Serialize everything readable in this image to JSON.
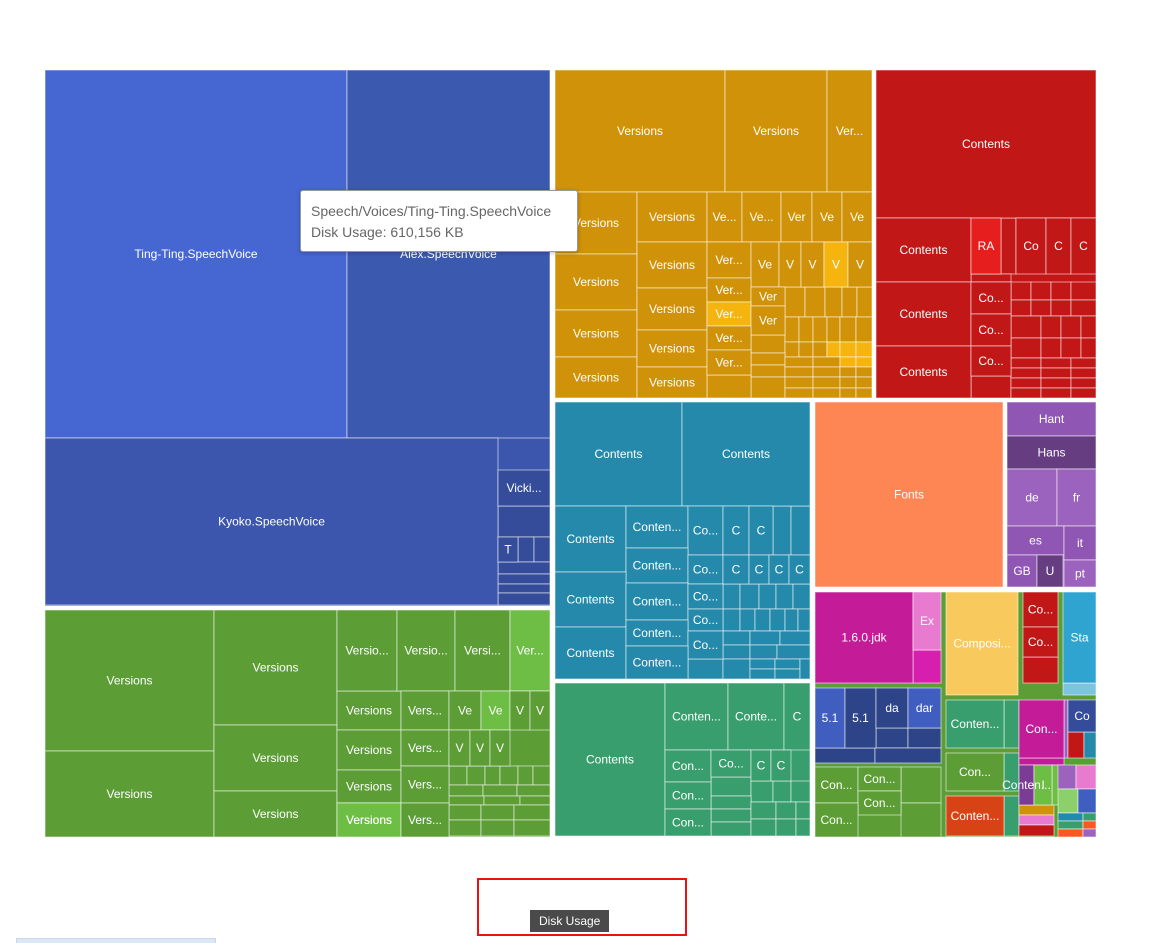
{
  "chart_data": {
    "type": "treemap",
    "series_name": "Disk Usage",
    "nodes": [
      {
        "name": "Ting-Ting.SpeechVoice",
        "label": "Ting-Ting.SpeechVoice",
        "color": "#4667d1"
      },
      {
        "name": "Alex.SpeechVoice",
        "label": "Alex.SpeechVoice",
        "color": "#3c59b0"
      },
      {
        "name": "Kyoko.SpeechVoice",
        "label": "Kyoko.SpeechVoice",
        "color": "#3c55ad"
      },
      {
        "name": "Vicki.SpeechVoice",
        "label": "Vicki...",
        "color": "#344c9a"
      },
      {
        "name": "T",
        "label": "T",
        "color": "#344c9a"
      },
      {
        "name": "Versions",
        "label": "Versions",
        "color": "#5c9e35"
      },
      {
        "name": "Versions",
        "label": "Versions",
        "color": "#5c9e35"
      },
      {
        "name": "Versions",
        "label": "Versions",
        "color": "#5c9e35"
      },
      {
        "name": "Versions",
        "label": "Versions",
        "color": "#5c9e35"
      },
      {
        "name": "Versions",
        "label": "Versions",
        "color": "#5c9e35"
      },
      {
        "name": "Versions",
        "label": "Versions",
        "color": "#5c9e35"
      },
      {
        "name": "Versio...",
        "label": "Versio...",
        "color": "#5c9e35"
      },
      {
        "name": "Versio...",
        "label": "Versio...",
        "color": "#5c9e35"
      },
      {
        "name": "Versi...",
        "label": "Versi...",
        "color": "#5c9e35"
      },
      {
        "name": "Ver...",
        "label": "Ver...",
        "color": "#6ebd44"
      },
      {
        "name": "Versions",
        "label": "Versions",
        "color": "#5c9e35"
      },
      {
        "name": "Vers...",
        "label": "Vers...",
        "color": "#5c9e35"
      },
      {
        "name": "Ve",
        "label": "Ve",
        "color": "#5c9e35"
      },
      {
        "name": "Ve",
        "label": "Ve",
        "color": "#6ebd44"
      },
      {
        "name": "V",
        "label": "V",
        "color": "#5c9e35"
      },
      {
        "name": "V",
        "label": "V",
        "color": "#5c9e35"
      },
      {
        "name": "Versions",
        "label": "Versions",
        "color": "#5c9e35"
      },
      {
        "name": "Vers...",
        "label": "Vers...",
        "color": "#5c9e35"
      },
      {
        "name": "V",
        "label": "V",
        "color": "#5c9e35"
      },
      {
        "name": "V",
        "label": "V",
        "color": "#5c9e35"
      },
      {
        "name": "V",
        "label": "V",
        "color": "#5c9e35"
      },
      {
        "name": "Versions",
        "label": "Versions",
        "color": "#5c9e35"
      },
      {
        "name": "Vers...",
        "label": "Vers...",
        "color": "#5c9e35"
      },
      {
        "name": "Versions",
        "label": "Versions",
        "color": "#6ebd44"
      },
      {
        "name": "Vers...",
        "label": "Vers...",
        "color": "#5c9e35"
      },
      {
        "name": "Versions",
        "label": "Versions",
        "color": "#d09208"
      },
      {
        "name": "Versions",
        "label": "Versions",
        "color": "#d09208"
      },
      {
        "name": "Ver...",
        "label": "Ver...",
        "color": "#d09208"
      },
      {
        "name": "Versions",
        "label": "Versions",
        "color": "#d09208"
      },
      {
        "name": "Versions",
        "label": "Versions",
        "color": "#d09208"
      },
      {
        "name": "Versions",
        "label": "Versions",
        "color": "#d09208"
      },
      {
        "name": "Versions",
        "label": "Versions",
        "color": "#d09208"
      },
      {
        "name": "Versions",
        "label": "Versions",
        "color": "#d09208"
      },
      {
        "name": "Versions",
        "label": "Versions",
        "color": "#d09208"
      },
      {
        "name": "Versions",
        "label": "Versions",
        "color": "#d09208"
      },
      {
        "name": "Versions",
        "label": "Versions",
        "color": "#d09208"
      },
      {
        "name": "Versions",
        "label": "Versions",
        "color": "#d09208"
      },
      {
        "name": "Ve...",
        "label": "Ve...",
        "color": "#d09208"
      },
      {
        "name": "Ve...",
        "label": "Ve...",
        "color": "#d09208"
      },
      {
        "name": "Ver",
        "label": "Ver",
        "color": "#d09208"
      },
      {
        "name": "Ve",
        "label": "Ve",
        "color": "#d09208"
      },
      {
        "name": "Ve",
        "label": "Ve",
        "color": "#d09208"
      },
      {
        "name": "Ver...",
        "label": "Ver...",
        "color": "#d09208"
      },
      {
        "name": "Ve",
        "label": "Ve",
        "color": "#d09208"
      },
      {
        "name": "V",
        "label": "V",
        "color": "#d09208"
      },
      {
        "name": "V",
        "label": "V",
        "color": "#d09208"
      },
      {
        "name": "V",
        "label": "V",
        "color": "#f5b40e"
      },
      {
        "name": "V",
        "label": "V",
        "color": "#d09208"
      },
      {
        "name": "Ver...",
        "label": "Ver...",
        "color": "#d09208"
      },
      {
        "name": "Ver",
        "label": "Ver",
        "color": "#d09208"
      },
      {
        "name": "Ver...",
        "label": "Ver...",
        "color": "#f5b40e"
      },
      {
        "name": "Ver",
        "label": "Ver",
        "color": "#d09208"
      },
      {
        "name": "Ver...",
        "label": "Ver...",
        "color": "#d09208"
      },
      {
        "name": "Ver...",
        "label": "Ver...",
        "color": "#d09208"
      },
      {
        "name": "Contents",
        "label": "Contents",
        "color": "#c11717"
      },
      {
        "name": "Contents",
        "label": "Contents",
        "color": "#c11717"
      },
      {
        "name": "RA",
        "label": "RA",
        "color": "#e61e1e"
      },
      {
        "name": "Co",
        "label": "Co",
        "color": "#c11717"
      },
      {
        "name": "C",
        "label": "C",
        "color": "#c11717"
      },
      {
        "name": "C",
        "label": "C",
        "color": "#c11717"
      },
      {
        "name": "Contents",
        "label": "Contents",
        "color": "#c11717"
      },
      {
        "name": "Co...",
        "label": "Co...",
        "color": "#c11717"
      },
      {
        "name": "Co...",
        "label": "Co...",
        "color": "#c11717"
      },
      {
        "name": "Contents",
        "label": "Contents",
        "color": "#c11717"
      },
      {
        "name": "Co...",
        "label": "Co...",
        "color": "#c11717"
      },
      {
        "name": "Contents",
        "label": "Contents",
        "color": "#2589ab"
      },
      {
        "name": "Contents",
        "label": "Contents",
        "color": "#2589ab"
      },
      {
        "name": "Contents",
        "label": "Contents",
        "color": "#2589ab"
      },
      {
        "name": "Conten...",
        "label": "Conten...",
        "color": "#2589ab"
      },
      {
        "name": "Co...",
        "label": "Co...",
        "color": "#2589ab"
      },
      {
        "name": "C",
        "label": "C",
        "color": "#2589ab"
      },
      {
        "name": "C",
        "label": "C",
        "color": "#2589ab"
      },
      {
        "name": "Conten...",
        "label": "Conten...",
        "color": "#2589ab"
      },
      {
        "name": "Co...",
        "label": "Co...",
        "color": "#2589ab"
      },
      {
        "name": "C",
        "label": "C",
        "color": "#2589ab"
      },
      {
        "name": "C",
        "label": "C",
        "color": "#2589ab"
      },
      {
        "name": "C",
        "label": "C",
        "color": "#2589ab"
      },
      {
        "name": "C",
        "label": "C",
        "color": "#2589ab"
      },
      {
        "name": "Contents",
        "label": "Contents",
        "color": "#2589ab"
      },
      {
        "name": "Conten...",
        "label": "Conten...",
        "color": "#2589ab"
      },
      {
        "name": "Co...",
        "label": "Co...",
        "color": "#2589ab"
      },
      {
        "name": "Co...",
        "label": "Co...",
        "color": "#2589ab"
      },
      {
        "name": "Contents",
        "label": "Contents",
        "color": "#2589ab"
      },
      {
        "name": "Conten...",
        "label": "Conten...",
        "color": "#2589ab"
      },
      {
        "name": "Co...",
        "label": "Co...",
        "color": "#2589ab"
      },
      {
        "name": "Conten...",
        "label": "Conten...",
        "color": "#2589ab"
      },
      {
        "name": "Contents",
        "label": "Contents",
        "color": "#389e6e"
      },
      {
        "name": "Conten...",
        "label": "Conten...",
        "color": "#389e6e"
      },
      {
        "name": "Conte...",
        "label": "Conte...",
        "color": "#389e6e"
      },
      {
        "name": "C",
        "label": "C",
        "color": "#389e6e"
      },
      {
        "name": "Con...",
        "label": "Con...",
        "color": "#389e6e"
      },
      {
        "name": "Co...",
        "label": "Co...",
        "color": "#389e6e"
      },
      {
        "name": "C",
        "label": "C",
        "color": "#389e6e"
      },
      {
        "name": "C",
        "label": "C",
        "color": "#389e6e"
      },
      {
        "name": "Con...",
        "label": "Con...",
        "color": "#389e6e"
      },
      {
        "name": "Con...",
        "label": "Con...",
        "color": "#389e6e"
      },
      {
        "name": "Fonts",
        "label": "Fonts",
        "color": "#fe8554"
      },
      {
        "name": "Hant",
        "label": "Hant",
        "color": "#8f57b3"
      },
      {
        "name": "Hans",
        "label": "Hans",
        "color": "#663d80"
      },
      {
        "name": "de",
        "label": "de",
        "color": "#9b63bd"
      },
      {
        "name": "fr",
        "label": "fr",
        "color": "#9b63bd"
      },
      {
        "name": "es",
        "label": "es",
        "color": "#8f57b3"
      },
      {
        "name": "it",
        "label": "it",
        "color": "#8f57b3"
      },
      {
        "name": "GB",
        "label": "GB",
        "color": "#8f57b3"
      },
      {
        "name": "U",
        "label": "U",
        "color": "#663d80"
      },
      {
        "name": "pt",
        "label": "pt",
        "color": "#9b63bd"
      },
      {
        "name": "1.6.0.jdk",
        "label": "1.6.0.jdk",
        "color": "#c41b98"
      },
      {
        "name": "Ex",
        "label": "Ex",
        "color": "#e87bd0"
      },
      {
        "name": "Composi...",
        "label": "Composi...",
        "color": "#f8c95c"
      },
      {
        "name": "Co...",
        "label": "Co...",
        "color": "#c11717"
      },
      {
        "name": "Co...",
        "label": "Co...",
        "color": "#c11717"
      },
      {
        "name": "Sta",
        "label": "Sta",
        "color": "#2fa4d1"
      },
      {
        "name": "5.1",
        "label": "5.1",
        "color": "#3f5ec0"
      },
      {
        "name": "5.1",
        "label": "5.1",
        "color": "#2d4488"
      },
      {
        "name": "da",
        "label": "da",
        "color": "#2d4488"
      },
      {
        "name": "dar",
        "label": "dar",
        "color": "#3f5ec0"
      },
      {
        "name": "Conten...",
        "label": "Conten...",
        "color": "#389e6e"
      },
      {
        "name": "Con...",
        "label": "Con...",
        "color": "#c41b98"
      },
      {
        "name": "Co",
        "label": "Co",
        "color": "#344c9a"
      },
      {
        "name": "Con...",
        "label": "Con...",
        "color": "#5c9e35"
      },
      {
        "name": "Con...",
        "label": "Con...",
        "color": "#5c9e35"
      },
      {
        "name": "Con...",
        "label": "Con...",
        "color": "#5c9e35"
      },
      {
        "name": "Con...",
        "label": "Con...",
        "color": "#5c9e35"
      },
      {
        "name": "Con...",
        "label": "Con...",
        "color": "#5c9e35"
      },
      {
        "name": "Conten...",
        "label": "Conten...",
        "color": "#d84315"
      },
      {
        "name": "Conten...",
        "label": "Conten...",
        "color": "#7c3b94"
      },
      {
        "name": "I",
        "label": "I",
        "color": "#6ebd44"
      },
      {
        "name": "I",
        "label": "I",
        "color": "#6ebd44"
      }
    ]
  },
  "tooltip": {
    "path": "Speech/Voices/Ting-Ting.SpeechVoice",
    "value_text": "Disk Usage: 610,156 KB"
  },
  "breadcrumb": {
    "label": "Disk Usage"
  }
}
